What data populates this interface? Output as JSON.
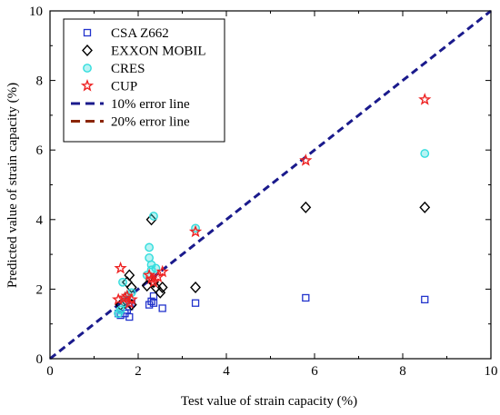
{
  "chart_data": {
    "type": "scatter",
    "title": "",
    "xlabel": "Test value of strain capacity (%)",
    "ylabel": "Predicted value of strain capacity (%)",
    "xlim": [
      0,
      10
    ],
    "ylim": [
      0,
      10
    ],
    "x_ticks": [
      "0",
      "2",
      "4",
      "6",
      "8",
      "10"
    ],
    "y_ticks": [
      "0",
      "2",
      "4",
      "6",
      "8",
      "10"
    ],
    "grid": false,
    "legend_position": "top-left",
    "series": [
      {
        "name": "CSA Z662",
        "marker": "square-open",
        "color": "#2233cc",
        "points": [
          [
            1.55,
            1.3
          ],
          [
            1.6,
            1.25
          ],
          [
            1.7,
            1.3
          ],
          [
            1.75,
            1.4
          ],
          [
            1.8,
            1.2
          ],
          [
            1.8,
            1.5
          ],
          [
            1.85,
            1.6
          ],
          [
            2.25,
            1.55
          ],
          [
            2.3,
            1.65
          ],
          [
            2.35,
            1.6
          ],
          [
            2.35,
            1.8
          ],
          [
            2.55,
            1.45
          ],
          [
            3.3,
            1.6
          ],
          [
            5.8,
            1.75
          ],
          [
            8.5,
            1.7
          ]
        ]
      },
      {
        "name": "EXXON MOBIL",
        "marker": "diamond-open",
        "color": "#000000",
        "points": [
          [
            1.6,
            1.55
          ],
          [
            1.7,
            1.6
          ],
          [
            1.75,
            2.2
          ],
          [
            1.8,
            2.4
          ],
          [
            1.85,
            1.55
          ],
          [
            1.85,
            2.05
          ],
          [
            2.2,
            2.1
          ],
          [
            2.3,
            4.0
          ],
          [
            2.35,
            2.2
          ],
          [
            2.4,
            2.05
          ],
          [
            2.5,
            1.9
          ],
          [
            2.55,
            2.05
          ],
          [
            3.3,
            2.05
          ],
          [
            5.8,
            4.35
          ],
          [
            8.5,
            4.35
          ]
        ]
      },
      {
        "name": "CRES",
        "marker": "circle-cyan",
        "color": "#33dddd",
        "points": [
          [
            1.55,
            1.3
          ],
          [
            1.6,
            1.4
          ],
          [
            1.65,
            2.2
          ],
          [
            1.7,
            1.6
          ],
          [
            1.75,
            1.8
          ],
          [
            1.85,
            1.9
          ],
          [
            2.2,
            2.4
          ],
          [
            2.25,
            2.9
          ],
          [
            2.25,
            3.2
          ],
          [
            2.3,
            2.7
          ],
          [
            2.3,
            2.55
          ],
          [
            2.35,
            4.1
          ],
          [
            2.4,
            2.6
          ],
          [
            3.3,
            3.75
          ],
          [
            8.5,
            5.9
          ]
        ]
      },
      {
        "name": "CUP",
        "marker": "star",
        "color": "#ee2222",
        "points": [
          [
            1.55,
            1.7
          ],
          [
            1.6,
            2.6
          ],
          [
            1.7,
            1.75
          ],
          [
            1.75,
            1.8
          ],
          [
            1.8,
            1.6
          ],
          [
            1.85,
            1.7
          ],
          [
            2.25,
            2.4
          ],
          [
            2.3,
            2.3
          ],
          [
            2.35,
            2.2
          ],
          [
            2.45,
            2.35
          ],
          [
            2.55,
            2.5
          ],
          [
            3.3,
            3.65
          ],
          [
            5.8,
            5.7
          ],
          [
            8.5,
            7.45
          ]
        ]
      }
    ],
    "lines": [
      {
        "name": "10% error line",
        "color": "#1a1a8c",
        "style": "dashed",
        "from": [
          0,
          0
        ],
        "to": [
          10,
          10
        ]
      },
      {
        "name": "20% error line",
        "color": "#8b2500",
        "style": "dashed",
        "from": null,
        "to": null
      }
    ]
  }
}
